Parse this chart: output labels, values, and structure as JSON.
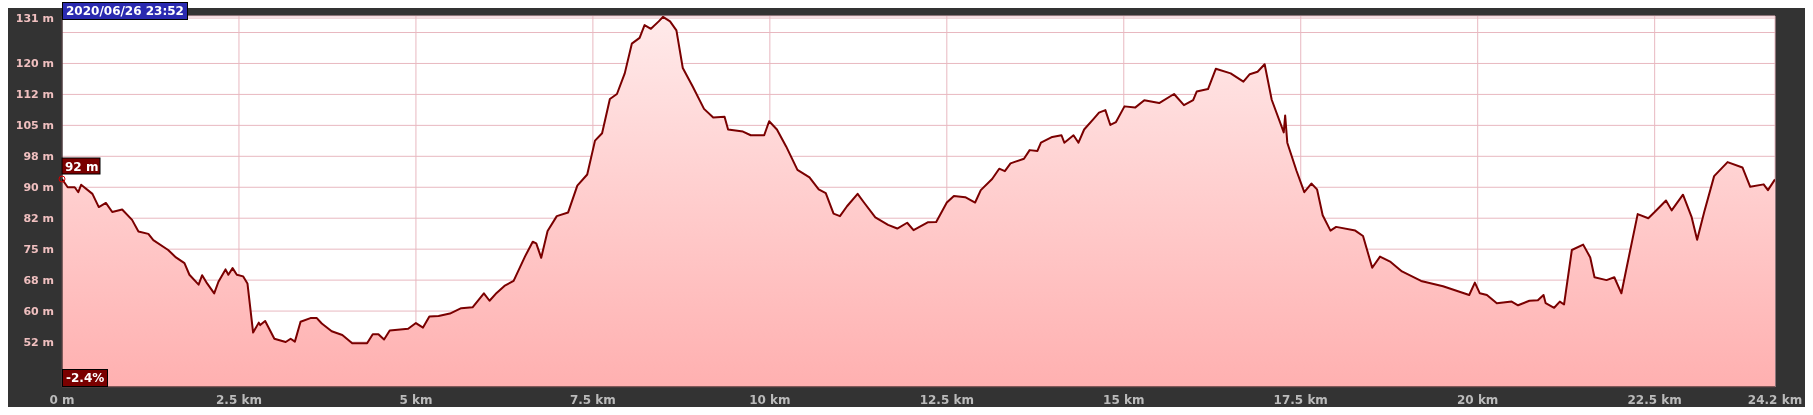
{
  "chart_data": {
    "type": "area",
    "x": [
      0,
      0.08,
      0.18,
      0.23,
      0.27,
      0.43,
      0.52,
      0.62,
      0.71,
      0.85,
      0.99,
      1.08,
      1.22,
      1.29,
      1.5,
      1.61,
      1.73,
      1.8,
      1.93,
      1.98,
      2.05,
      2.15,
      2.21,
      2.31,
      2.35,
      2.41,
      2.47,
      2.56,
      2.62,
      2.7,
      2.78,
      2.8,
      2.87,
      3.0,
      3.16,
      3.23,
      3.29,
      3.37,
      3.51,
      3.6,
      3.67,
      3.81,
      3.96,
      4.1,
      4.31,
      4.39,
      4.47,
      4.55,
      4.63,
      4.89,
      5.0,
      5.1,
      5.19,
      5.32,
      5.48,
      5.64,
      5.8,
      5.96,
      6.04,
      6.14,
      6.25,
      6.38,
      6.54,
      6.65,
      6.7,
      6.77,
      6.86,
      6.99,
      7.15,
      7.28,
      7.42,
      7.53,
      7.63,
      7.74,
      7.84,
      7.95,
      8.05,
      8.16,
      8.23,
      8.32,
      8.43,
      8.49,
      8.59,
      8.68,
      8.77,
      8.91,
      9.07,
      9.2,
      9.36,
      9.41,
      9.62,
      9.73,
      9.92,
      9.99,
      10.1,
      10.23,
      10.39,
      10.56,
      10.69,
      10.79,
      10.9,
      10.99,
      11.09,
      11.24,
      11.33,
      11.49,
      11.67,
      11.8,
      11.94,
      12.03,
      12.23,
      12.35,
      12.5,
      12.6,
      12.76,
      12.9,
      12.98,
      13.14,
      13.24,
      13.32,
      13.4,
      13.59,
      13.67,
      13.78,
      13.83,
      13.99,
      14.12,
      14.16,
      14.29,
      14.36,
      14.44,
      14.58,
      14.65,
      14.74,
      14.81,
      14.89,
      15.01,
      15.16,
      15.29,
      15.5,
      15.71,
      15.85,
      15.98,
      16.03,
      16.19,
      16.3,
      16.51,
      16.69,
      16.78,
      16.89,
      16.99,
      17.09,
      17.26,
      17.28,
      17.31,
      17.44,
      17.55,
      17.65,
      17.73,
      17.81,
      17.92,
      18.0,
      18.27,
      18.38,
      18.51,
      18.62,
      18.77,
      18.93,
      19.2,
      19.51,
      19.88,
      19.96,
      20.03,
      20.13,
      20.27,
      20.48,
      20.57,
      20.73,
      20.85,
      20.93,
      20.96,
      21.08,
      21.16,
      21.22,
      21.33,
      21.49,
      21.59,
      21.65,
      21.82,
      21.93,
      22.03,
      22.1,
      22.26,
      22.41,
      22.5,
      22.66,
      22.74,
      22.9,
      23.02,
      23.1,
      23.2,
      23.34,
      23.53,
      23.74,
      23.85,
      24.04,
      24.1,
      24.2
    ],
    "series": [
      {
        "color": "#7a0000",
        "values": [
          92,
          90,
          90,
          88.8,
          90.6,
          88.4,
          85.2,
          86.2,
          84,
          84.6,
          82.1,
          79.3,
          78.7,
          77.2,
          74.8,
          73,
          71.6,
          68.8,
          66.4,
          68.7,
          66.7,
          64.3,
          67.1,
          70.1,
          68.8,
          70.4,
          68.8,
          68.4,
          66.7,
          54.8,
          57.2,
          56.6,
          57.6,
          53.3,
          52.5,
          53.3,
          52.6,
          57.4,
          58.3,
          58.3,
          57,
          55.1,
          54.2,
          52.2,
          52.2,
          54.4,
          54.4,
          53.1,
          55.3,
          55.7,
          57.1,
          56,
          58.7,
          58.8,
          59.4,
          60.7,
          60.9,
          64.3,
          62.5,
          64.4,
          66.1,
          67.3,
          73.2,
          76.8,
          76.4,
          72.9,
          79.4,
          83,
          83.9,
          90.4,
          93.1,
          101.3,
          103.1,
          111.4,
          112.6,
          117.6,
          124.8,
          126.2,
          129.3,
          128.4,
          130.2,
          131.3,
          130.2,
          128,
          118.9,
          114.4,
          109,
          106.9,
          107.1,
          104,
          103.5,
          102.6,
          102.6,
          106,
          104,
          99.9,
          94.2,
          92.4,
          89.5,
          88.6,
          83.6,
          83,
          85.4,
          88.4,
          86.3,
          82.7,
          80.9,
          80,
          81.4,
          79.6,
          81.5,
          81.6,
          86.3,
          87.9,
          87.6,
          86.3,
          89.3,
          92,
          94.5,
          93.9,
          95.8,
          96.9,
          99,
          98.8,
          100.8,
          102.2,
          102.6,
          100.8,
          102.6,
          100.8,
          104,
          106.7,
          108.1,
          108.7,
          105.1,
          105.8,
          109.6,
          109.3,
          111.1,
          110.4,
          112.6,
          109.9,
          111.1,
          113.2,
          113.8,
          118.7,
          117.6,
          115.6,
          117.4,
          118,
          119.8,
          111.2,
          103.3,
          107.4,
          100.8,
          94,
          88.8,
          90.9,
          89.5,
          83.2,
          79.5,
          80.4,
          79.5,
          78.2,
          70.5,
          73.2,
          71.9,
          69.6,
          67.3,
          66,
          63.9,
          66.9,
          64.3,
          63.9,
          61.9,
          62.3,
          61.4,
          62.5,
          62.6,
          63.9,
          61.9,
          60.8,
          62.3,
          61.6,
          74.8,
          76.1,
          73,
          68.2,
          67.5,
          68.2,
          64.3,
          70.2,
          83.5,
          82.5,
          84,
          86.8,
          84.4,
          88.2,
          82.9,
          77.3,
          84,
          92.7,
          96.1,
          94.8,
          90.1,
          90.7,
          89.3,
          91.9
        ]
      }
    ],
    "xlim": [
      0,
      24.2
    ],
    "xticks": [
      {
        "value": 0,
        "label": "0 m"
      },
      {
        "value": 2.5,
        "label": "2.5 km"
      },
      {
        "value": 5,
        "label": "5 km"
      },
      {
        "value": 7.5,
        "label": "7.5 km"
      },
      {
        "value": 10,
        "label": "10 km"
      },
      {
        "value": 12.5,
        "label": "12.5 km"
      },
      {
        "value": 15,
        "label": "15 km"
      },
      {
        "value": 17.5,
        "label": "17.5 km"
      },
      {
        "value": 20,
        "label": "20 km"
      },
      {
        "value": 22.5,
        "label": "22.5 km"
      },
      {
        "value": 24.2,
        "label": "24.2 km"
      }
    ],
    "ylim": [
      41.6,
      131.5
    ],
    "yticks": [
      {
        "value": 52.5,
        "label": "52 m"
      },
      {
        "value": 60,
        "label": "60 m"
      },
      {
        "value": 67.5,
        "label": "68 m"
      },
      {
        "value": 75,
        "label": "75 m"
      },
      {
        "value": 82.5,
        "label": "82 m"
      },
      {
        "value": 90,
        "label": "90 m"
      },
      {
        "value": 97.5,
        "label": "98 m"
      },
      {
        "value": 105,
        "label": "105 m"
      },
      {
        "value": 112.5,
        "label": "112 m"
      },
      {
        "value": 120,
        "label": "120 m"
      },
      {
        "value": 127.5,
        "label": null
      },
      {
        "value": 131,
        "label": "131 m"
      }
    ],
    "grid": true,
    "marker": "none",
    "annotations": [
      "2020/06/26 23:52",
      {
        "text": "92 m",
        "x": 0,
        "y": 92
      },
      "-2.4%"
    ]
  }
}
